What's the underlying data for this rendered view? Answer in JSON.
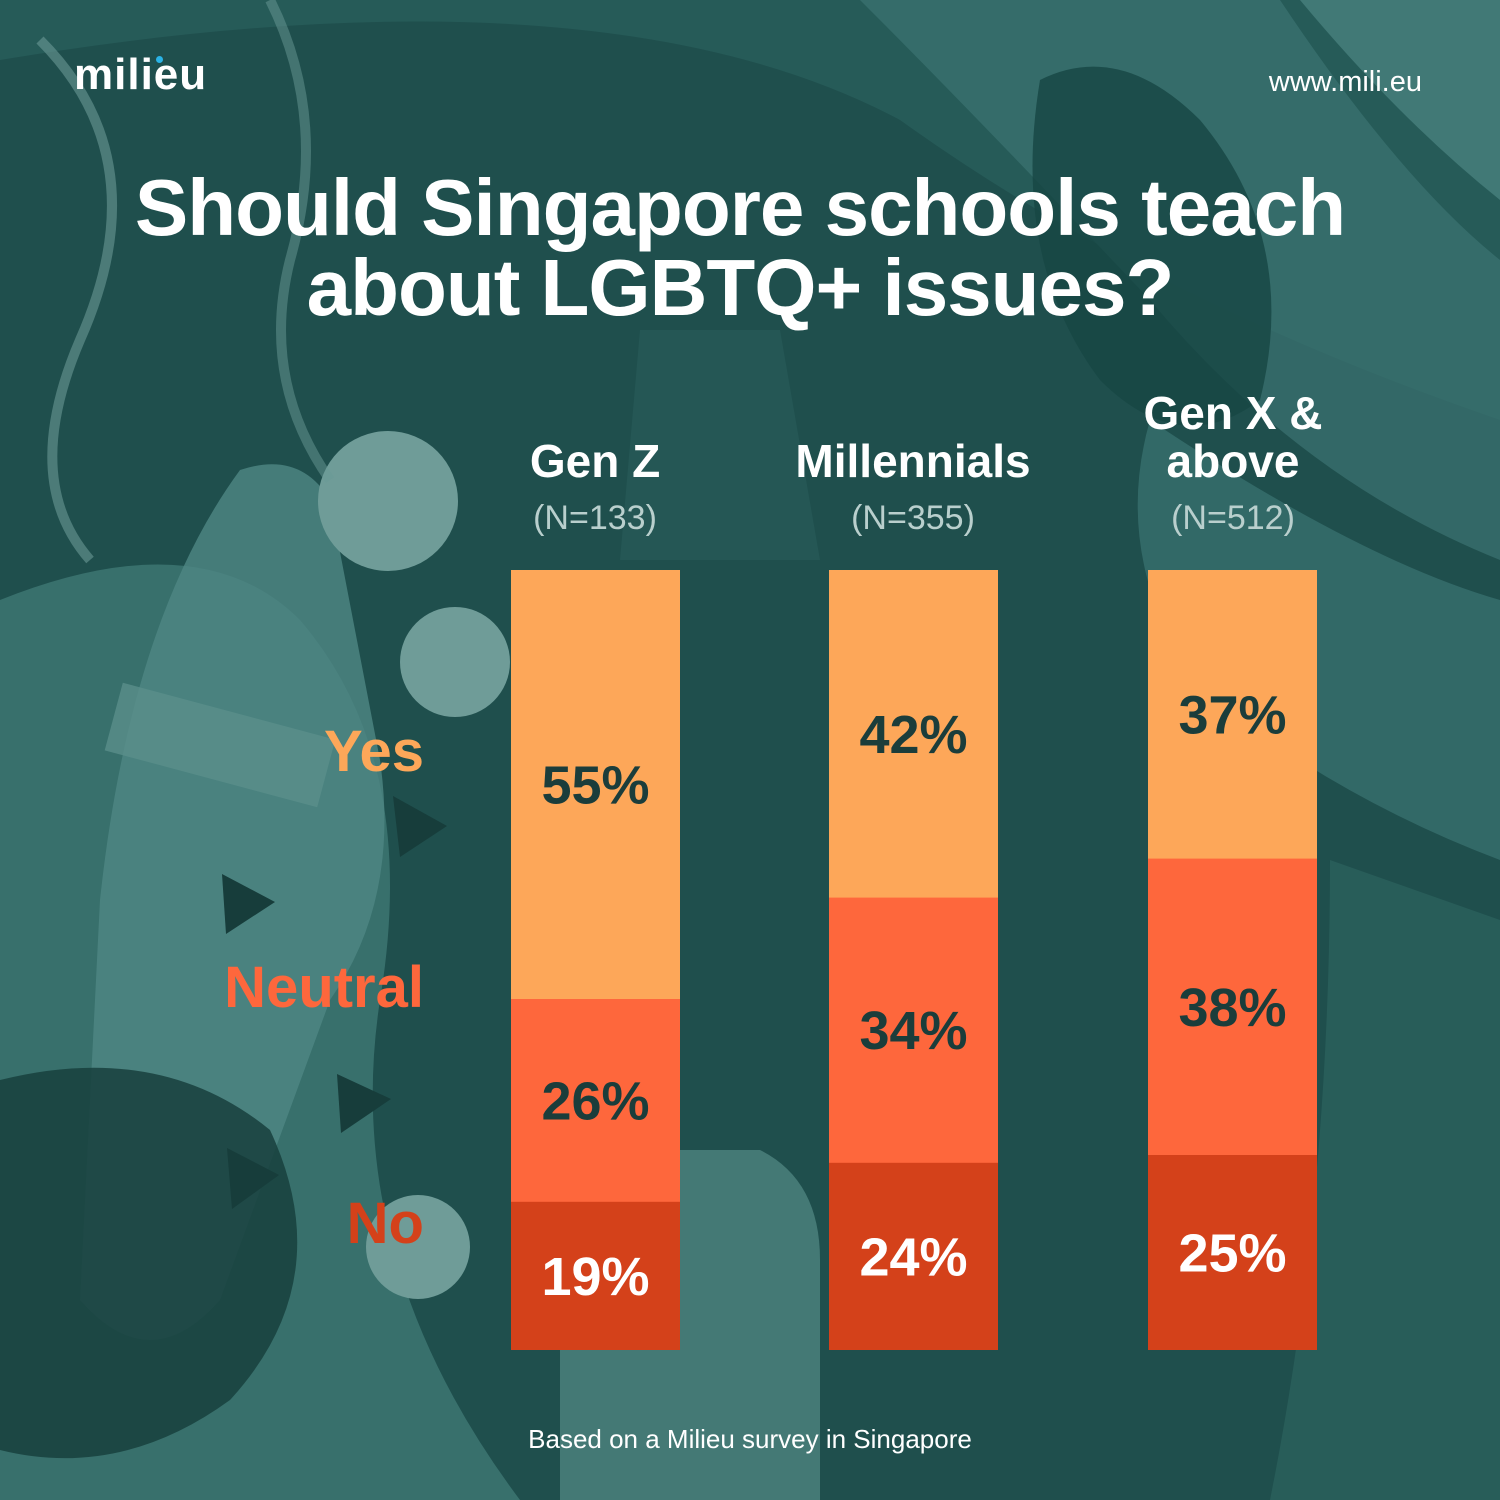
{
  "brand": {
    "logo": "milieu",
    "website": "www.mili.eu"
  },
  "title_lines": [
    "Should Singapore schools teach",
    "about LGBTQ+ issues?"
  ],
  "footer": "Based on a Milieu survey in Singapore",
  "colors": {
    "background": "#1e4e4c",
    "yes": "#fda759",
    "neutral": "#fe673c",
    "no": "#d4411a",
    "value_dark": "#1b3d3b",
    "value_light": "#ffffff",
    "logo_dot": "#2ab3e6"
  },
  "columns": [
    {
      "name_lines": [
        "Gen Z"
      ],
      "sample": "(N=133)"
    },
    {
      "name_lines": [
        "Millennials"
      ],
      "sample": "(N=355)"
    },
    {
      "name_lines": [
        "Gen X &",
        "above"
      ],
      "sample": "(N=512)"
    }
  ],
  "chart_data": {
    "type": "bar",
    "stacked": true,
    "percent": true,
    "title": "Should Singapore schools teach about LGBTQ+ issues?",
    "categories": [
      "Gen Z",
      "Millennials",
      "Gen X & above"
    ],
    "series": [
      {
        "name": "Yes",
        "values": [
          55,
          42,
          37
        ],
        "labels": [
          "55%",
          "42%",
          "37%"
        ]
      },
      {
        "name": "Neutral",
        "values": [
          26,
          34,
          38
        ],
        "labels": [
          "26%",
          "34%",
          "38%"
        ]
      },
      {
        "name": "No",
        "values": [
          19,
          24,
          25
        ],
        "labels": [
          "19%",
          "24%",
          "25%"
        ]
      }
    ],
    "ylim": [
      0,
      100
    ]
  }
}
